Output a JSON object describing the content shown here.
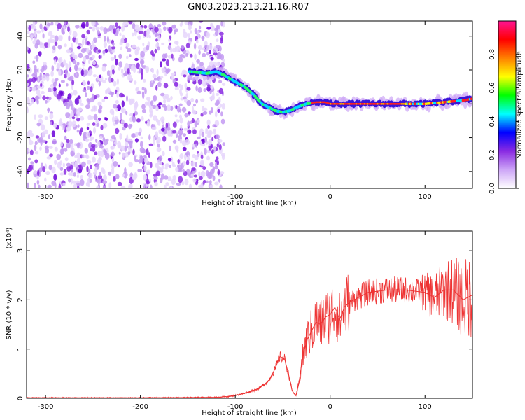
{
  "chart_data": [
    {
      "type": "heatmap",
      "title": "GN03.2023.213.21.16.R07",
      "xlabel": "Height of straight line (km)",
      "ylabel": "Frequency (Hz)",
      "xlim": [
        -320,
        150
      ],
      "ylim": [
        -50,
        49
      ],
      "xticks": [
        -300,
        -200,
        -100,
        0,
        100
      ],
      "yticks": [
        -40,
        -20,
        0,
        20,
        40
      ],
      "noise_region_x": [
        -320,
        -112
      ],
      "ridge": {
        "x": [
          -148,
          -130,
          -120,
          -112,
          -100,
          -90,
          -80,
          -72,
          -65,
          -58,
          -50,
          -42,
          -35,
          -25,
          -15,
          -5,
          0,
          20,
          50,
          80,
          100,
          120,
          140,
          150
        ],
        "y": [
          19,
          18,
          19,
          17,
          13,
          10,
          5,
          0,
          -2,
          -4,
          -5,
          -4,
          -2,
          0,
          1,
          1,
          0,
          0,
          0,
          0,
          0,
          1,
          2,
          3
        ]
      },
      "colorbar": {
        "label": "Normalized spectral amplitude",
        "range": [
          0.0,
          1.0
        ],
        "ticks": [
          "0.0",
          "0.2",
          "0.4",
          "0.6",
          "0.8"
        ],
        "colors": [
          "#ffffff",
          "#cda6f7",
          "#8a2be2",
          "#0000ff",
          "#00ffff",
          "#00ff00",
          "#ffff00",
          "#ff8000",
          "#ff0000",
          "#ff1493"
        ]
      }
    },
    {
      "type": "line",
      "xlabel": "Height of straight line (km)",
      "ylabel": "SNR (10 * v/v)",
      "yexponent": "(x10",
      "yexponent_power": "4",
      "yexponent_close": ")",
      "xlim": [
        -320,
        150
      ],
      "ylim": [
        0,
        3.4
      ],
      "xticks": [
        -300,
        -200,
        -100,
        0,
        100
      ],
      "yticks": [
        0,
        1,
        2,
        3
      ],
      "color": "#ee3333",
      "x": [
        -320,
        -200,
        -120,
        -105,
        -90,
        -75,
        -65,
        -58,
        -53,
        -48,
        -44,
        -40,
        -36,
        -33,
        -30,
        -27,
        -24,
        -20,
        -15,
        -10,
        -5,
        0,
        5,
        10,
        15,
        20,
        30,
        40,
        60,
        80,
        100,
        110,
        120,
        130,
        140,
        150
      ],
      "y": [
        0.01,
        0.01,
        0.02,
        0.04,
        0.1,
        0.2,
        0.35,
        0.6,
        0.85,
        0.8,
        0.5,
        0.15,
        0.05,
        0.3,
        0.7,
        1.0,
        1.2,
        1.35,
        1.55,
        1.5,
        1.65,
        1.7,
        1.85,
        1.6,
        1.85,
        1.95,
        2.05,
        2.15,
        2.2,
        2.2,
        2.15,
        2.05,
        2.2,
        2.2,
        2.0,
        2.1
      ]
    }
  ]
}
